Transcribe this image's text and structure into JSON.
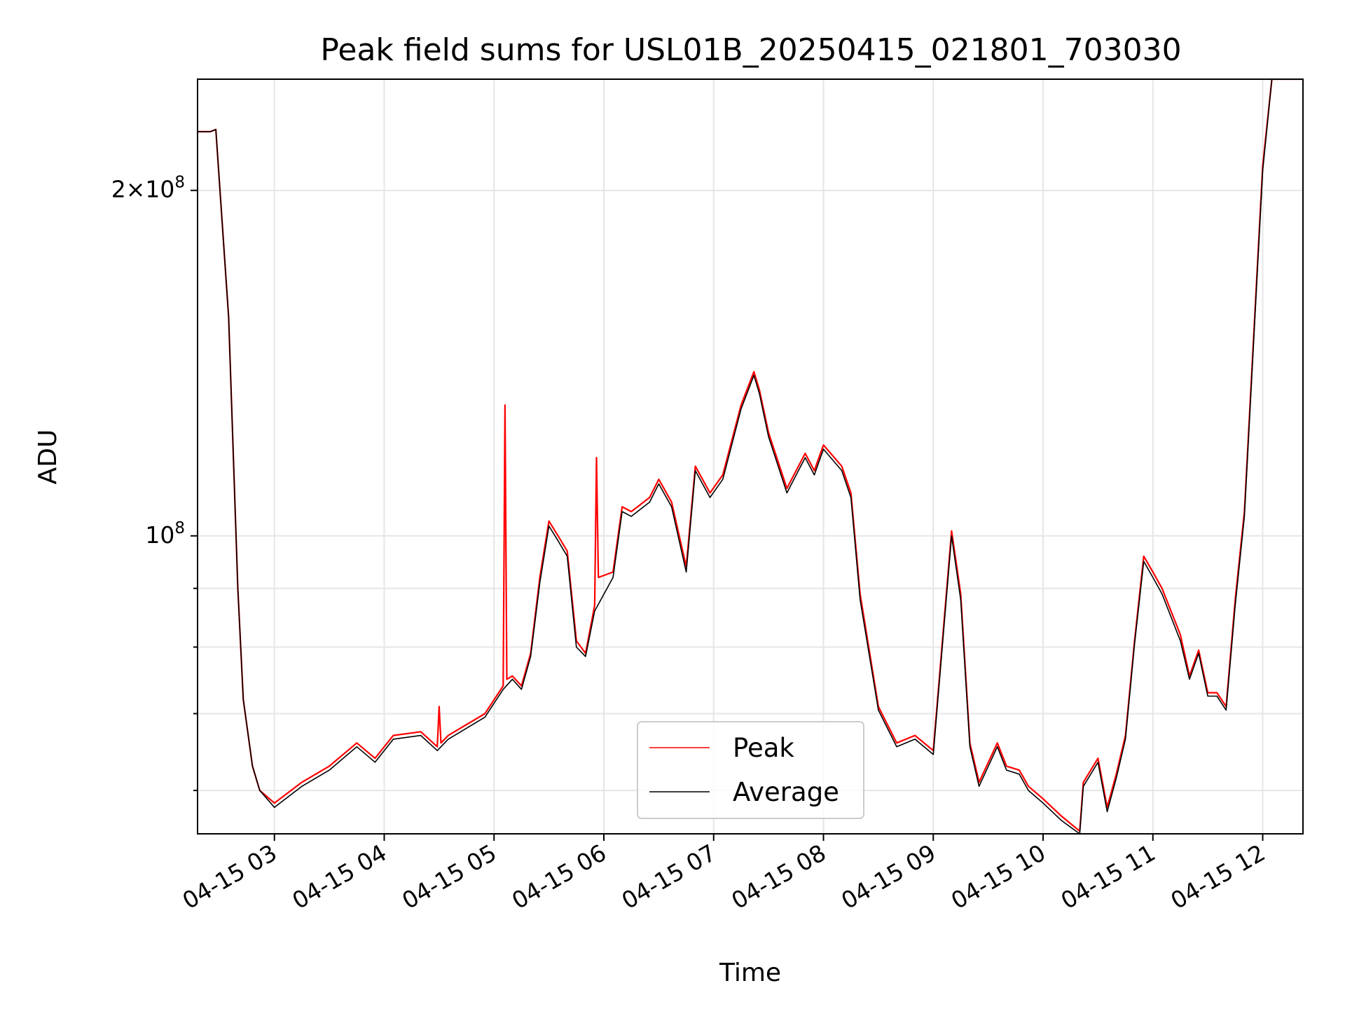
{
  "chart_data": {
    "type": "line",
    "title": "Peak field sums for USL01B_20250415_021801_703030",
    "xlabel": "Time",
    "ylabel": "ADU",
    "yscale": "log",
    "xlim": [
      "2025-04-15 02:18",
      "2025-04-15 12:22"
    ],
    "ylim": [
      55000000,
      250000000
    ],
    "grid": true,
    "legend_position": "lower center",
    "x_ticks": [
      "04-15 03",
      "04-15 04",
      "04-15 05",
      "04-15 06",
      "04-15 07",
      "04-15 08",
      "04-15 09",
      "04-15 10",
      "04-15 11",
      "04-15 12"
    ],
    "y_major_ticks": [
      {
        "value": 100000000,
        "label": "10^8"
      },
      {
        "value": 200000000,
        "label": "2×10^8"
      }
    ],
    "y_minor_ticks": [
      60000000,
      70000000,
      80000000,
      90000000
    ],
    "series": [
      {
        "name": "Peak",
        "color": "#ff0000",
        "x": [
          "2025-04-15 02:18",
          "2025-04-15 02:25",
          "2025-04-15 02:28",
          "2025-04-15 02:35",
          "2025-04-15 02:40",
          "2025-04-15 02:43",
          "2025-04-15 02:48",
          "2025-04-15 02:52",
          "2025-04-15 03:00",
          "2025-04-15 03:15",
          "2025-04-15 03:30",
          "2025-04-15 03:45",
          "2025-04-15 03:55",
          "2025-04-15 04:05",
          "2025-04-15 04:20",
          "2025-04-15 04:29",
          "2025-04-15 04:30",
          "2025-04-15 04:31",
          "2025-04-15 04:35",
          "2025-04-15 04:55",
          "2025-04-15 05:05",
          "2025-04-15 05:06",
          "2025-04-15 05:07",
          "2025-04-15 05:10",
          "2025-04-15 05:15",
          "2025-04-15 05:20",
          "2025-04-15 05:25",
          "2025-04-15 05:30",
          "2025-04-15 05:35",
          "2025-04-15 05:40",
          "2025-04-15 05:45",
          "2025-04-15 05:50",
          "2025-04-15 05:55",
          "2025-04-15 05:56",
          "2025-04-15 05:57",
          "2025-04-15 06:05",
          "2025-04-15 06:10",
          "2025-04-15 06:15",
          "2025-04-15 06:25",
          "2025-04-15 06:30",
          "2025-04-15 06:37",
          "2025-04-15 06:45",
          "2025-04-15 06:50",
          "2025-04-15 06:58",
          "2025-04-15 07:05",
          "2025-04-15 07:15",
          "2025-04-15 07:22",
          "2025-04-15 07:25",
          "2025-04-15 07:30",
          "2025-04-15 07:40",
          "2025-04-15 07:50",
          "2025-04-15 07:55",
          "2025-04-15 08:00",
          "2025-04-15 08:10",
          "2025-04-15 08:15",
          "2025-04-15 08:20",
          "2025-04-15 08:30",
          "2025-04-15 08:40",
          "2025-04-15 08:50",
          "2025-04-15 09:00",
          "2025-04-15 09:10",
          "2025-04-15 09:15",
          "2025-04-15 09:20",
          "2025-04-15 09:25",
          "2025-04-15 09:35",
          "2025-04-15 09:40",
          "2025-04-15 09:47",
          "2025-04-15 09:52",
          "2025-04-15 10:00",
          "2025-04-15 10:10",
          "2025-04-15 10:20",
          "2025-04-15 10:22",
          "2025-04-15 10:30",
          "2025-04-15 10:35",
          "2025-04-15 10:40",
          "2025-04-15 10:45",
          "2025-04-15 10:50",
          "2025-04-15 10:55",
          "2025-04-15 11:00",
          "2025-04-15 11:05",
          "2025-04-15 11:15",
          "2025-04-15 11:20",
          "2025-04-15 11:25",
          "2025-04-15 11:30",
          "2025-04-15 11:35",
          "2025-04-15 11:40",
          "2025-04-15 11:45",
          "2025-04-15 11:50",
          "2025-04-15 12:00",
          "2025-04-15 12:05",
          "2025-04-15 12:10",
          "2025-04-15 12:15",
          "2025-04-15 12:22"
        ],
        "y": [
          225000000,
          225000000,
          226000000,
          155000000,
          90000000,
          72000000,
          63000000,
          60000000,
          58500000,
          61000000,
          63000000,
          66000000,
          64000000,
          67000000,
          67500000,
          65500000,
          71000000,
          66000000,
          67000000,
          70000000,
          74000000,
          130000000,
          75000000,
          75500000,
          74000000,
          79000000,
          92000000,
          103000000,
          100000000,
          97000000,
          81000000,
          79000000,
          87000000,
          117000000,
          92000000,
          93000000,
          106000000,
          105000000,
          108000000,
          112000000,
          107000000,
          94000000,
          115000000,
          109000000,
          113000000,
          130000000,
          139000000,
          134000000,
          123000000,
          110000000,
          118000000,
          114000000,
          120000000,
          115000000,
          109000000,
          89000000,
          71000000,
          66000000,
          67000000,
          65000000,
          101000000,
          89000000,
          66000000,
          61000000,
          66000000,
          63000000,
          62500000,
          60500000,
          59000000,
          57000000,
          55300000,
          61000000,
          64000000,
          58000000,
          62000000,
          67000000,
          81000000,
          96000000,
          93000000,
          90000000,
          82000000,
          75500000,
          79500000,
          73000000,
          73000000,
          71000000,
          88000000,
          105000000,
          210000000,
          250000000,
          250000000,
          250000000,
          250000000
        ]
      },
      {
        "name": "Average",
        "color": "#000000",
        "x": [
          "2025-04-15 02:18",
          "2025-04-15 02:25",
          "2025-04-15 02:28",
          "2025-04-15 02:35",
          "2025-04-15 02:40",
          "2025-04-15 02:43",
          "2025-04-15 02:48",
          "2025-04-15 02:52",
          "2025-04-15 03:00",
          "2025-04-15 03:15",
          "2025-04-15 03:30",
          "2025-04-15 03:45",
          "2025-04-15 03:55",
          "2025-04-15 04:05",
          "2025-04-15 04:20",
          "2025-04-15 04:29",
          "2025-04-15 04:31",
          "2025-04-15 04:35",
          "2025-04-15 04:55",
          "2025-04-15 05:05",
          "2025-04-15 05:10",
          "2025-04-15 05:15",
          "2025-04-15 05:20",
          "2025-04-15 05:25",
          "2025-04-15 05:30",
          "2025-04-15 05:35",
          "2025-04-15 05:40",
          "2025-04-15 05:45",
          "2025-04-15 05:50",
          "2025-04-15 05:55",
          "2025-04-15 06:05",
          "2025-04-15 06:10",
          "2025-04-15 06:15",
          "2025-04-15 06:25",
          "2025-04-15 06:30",
          "2025-04-15 06:37",
          "2025-04-15 06:45",
          "2025-04-15 06:50",
          "2025-04-15 06:58",
          "2025-04-15 07:05",
          "2025-04-15 07:15",
          "2025-04-15 07:22",
          "2025-04-15 07:25",
          "2025-04-15 07:30",
          "2025-04-15 07:40",
          "2025-04-15 07:50",
          "2025-04-15 07:55",
          "2025-04-15 08:00",
          "2025-04-15 08:10",
          "2025-04-15 08:15",
          "2025-04-15 08:20",
          "2025-04-15 08:30",
          "2025-04-15 08:40",
          "2025-04-15 08:50",
          "2025-04-15 09:00",
          "2025-04-15 09:10",
          "2025-04-15 09:15",
          "2025-04-15 09:20",
          "2025-04-15 09:25",
          "2025-04-15 09:35",
          "2025-04-15 09:40",
          "2025-04-15 09:47",
          "2025-04-15 09:52",
          "2025-04-15 10:00",
          "2025-04-15 10:10",
          "2025-04-15 10:20",
          "2025-04-15 10:22",
          "2025-04-15 10:30",
          "2025-04-15 10:35",
          "2025-04-15 10:40",
          "2025-04-15 10:45",
          "2025-04-15 10:50",
          "2025-04-15 10:55",
          "2025-04-15 11:00",
          "2025-04-15 11:05",
          "2025-04-15 11:15",
          "2025-04-15 11:20",
          "2025-04-15 11:25",
          "2025-04-15 11:30",
          "2025-04-15 11:35",
          "2025-04-15 11:40",
          "2025-04-15 11:45",
          "2025-04-15 11:50",
          "2025-04-15 12:00",
          "2025-04-15 12:05",
          "2025-04-15 12:10",
          "2025-04-15 12:15",
          "2025-04-15 12:22"
        ],
        "y": [
          225000000,
          225000000,
          226000000,
          155000000,
          90000000,
          72000000,
          63000000,
          60000000,
          58000000,
          60500000,
          62500000,
          65500000,
          63500000,
          66500000,
          67000000,
          65000000,
          65500000,
          66500000,
          69500000,
          73500000,
          75000000,
          73500000,
          78500000,
          91000000,
          102000000,
          99000000,
          96000000,
          80000000,
          78500000,
          86000000,
          92000000,
          105000000,
          104000000,
          107000000,
          111000000,
          106000000,
          93000000,
          114000000,
          108000000,
          112000000,
          129000000,
          138000000,
          133000000,
          122000000,
          109000000,
          117000000,
          113000000,
          119000000,
          114000000,
          108000000,
          88000000,
          70500000,
          65500000,
          66500000,
          64500000,
          100000000,
          88000000,
          65500000,
          60500000,
          65500000,
          62500000,
          62000000,
          60000000,
          58500000,
          56500000,
          55000000,
          60500000,
          63500000,
          57500000,
          61500000,
          66500000,
          80500000,
          95000000,
          92000000,
          89000000,
          81000000,
          75000000,
          79000000,
          72500000,
          72500000,
          70500000,
          87000000,
          104000000,
          208000000,
          250000000,
          250000000,
          250000000,
          250000000
        ]
      }
    ]
  }
}
